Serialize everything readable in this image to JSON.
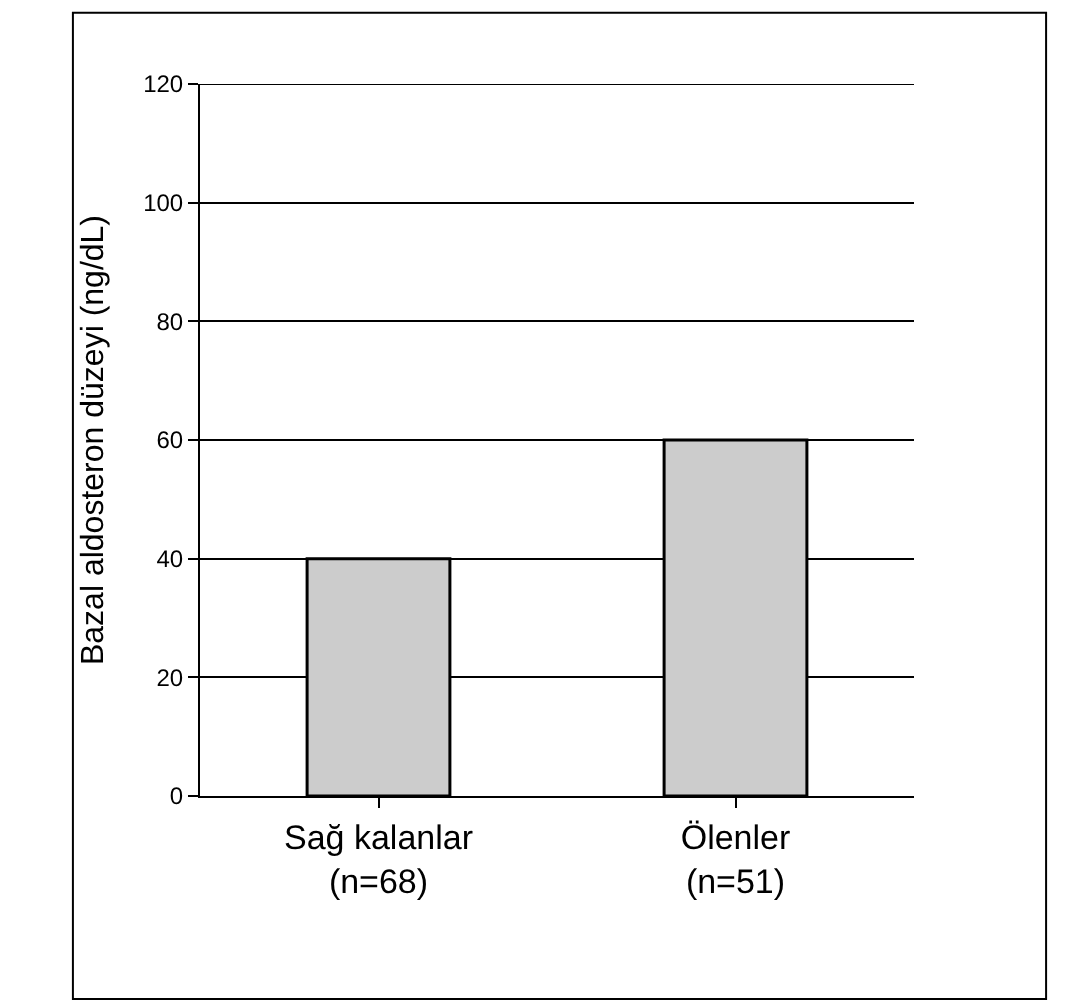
{
  "chart_data": {
    "type": "bar",
    "ylabel": "Bazal aldosteron düzeyi (ng/dL)",
    "categories": [
      "Sağ kalanlar\n(n=68)",
      "Ölenler\n(n=51)"
    ],
    "values": [
      40,
      60
    ],
    "color": "#cccccc",
    "ylim": [
      0,
      120
    ],
    "yticks": [
      0,
      20,
      40,
      60,
      80,
      100,
      120
    ],
    "grid": "y"
  }
}
